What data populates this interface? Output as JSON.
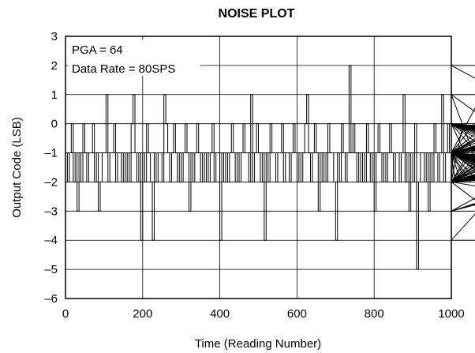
{
  "chart_data": {
    "type": "line",
    "title": "NOISE PLOT",
    "xlabel": "Time (Reading Number)",
    "ylabel": "Output Code (LSB)",
    "xlim": [
      0,
      1000
    ],
    "ylim": [
      -6,
      3
    ],
    "xticks": [
      0,
      200,
      400,
      600,
      800,
      1000
    ],
    "yticks": [
      3,
      2,
      1,
      0,
      -1,
      -2,
      -3,
      -4,
      -5,
      -6
    ],
    "xtick_labels": [
      "0",
      "200",
      "400",
      "600",
      "800",
      "1000"
    ],
    "ytick_labels": [
      "3",
      "2",
      "1",
      "0",
      "–1",
      "–2",
      "–3",
      "–4",
      "–5",
      "–6"
    ],
    "grid": true,
    "legend": "none",
    "annotations": [
      "PGA = 64",
      "Data Rate = 80SPS"
    ],
    "series": [
      {
        "x_start": 0,
        "x_step": 5,
        "values": [
          -1,
          -2,
          -1,
          0,
          -2,
          -1,
          -3,
          -1,
          -2,
          0,
          -1,
          -2,
          -1,
          -1,
          0,
          -2,
          -1,
          -3,
          -2,
          -1,
          -1,
          1,
          -2,
          -1,
          -1,
          0,
          -2,
          -1,
          -1,
          -2,
          -1,
          -2,
          -1,
          -2,
          0,
          1,
          -1,
          -2,
          -1,
          -4,
          -1,
          -2,
          0,
          -1,
          -2,
          -4,
          -1,
          -2,
          -1,
          -1,
          -2,
          1,
          0,
          -1,
          -2,
          -1,
          0,
          -1,
          -2,
          -1,
          -2,
          -1,
          0,
          -1,
          -3,
          -1,
          -2,
          -1,
          0,
          -1,
          -2,
          -1,
          -2,
          -1,
          -2,
          -1,
          0,
          -2,
          -1,
          -1,
          -4,
          -1,
          -2,
          -1,
          -2,
          -1,
          0,
          -1,
          -2,
          -1,
          -2,
          -1,
          0,
          -1,
          -1,
          -2,
          1,
          -2,
          -1,
          0,
          -1,
          -2,
          -1,
          -4,
          -1,
          -2,
          0,
          -1,
          -1,
          -2,
          -1,
          -1,
          0,
          -2,
          -1,
          -1,
          -2,
          -1,
          0,
          -1,
          -2,
          -1,
          -2,
          -1,
          0,
          1,
          -1,
          -2,
          -1,
          0,
          -1,
          -3,
          -1,
          -2,
          -1,
          -2,
          0,
          -1,
          -1,
          -2,
          -4,
          -1,
          -2,
          0,
          -1,
          -2,
          -1,
          2,
          -1,
          0,
          -1,
          -2,
          -1,
          -2,
          -1,
          -2,
          0,
          -1,
          -2,
          -1,
          -3,
          -1,
          0,
          -1,
          -2,
          -1,
          -2,
          -1,
          0,
          -1,
          -2,
          -1,
          -1,
          -2,
          -1,
          1,
          -2,
          -1,
          -3,
          -1,
          -2,
          0,
          -5,
          -2,
          -1,
          -1,
          -2,
          -1,
          -3,
          -1,
          -2,
          0,
          -1,
          -2,
          -1,
          1,
          -2,
          -1,
          0,
          -1,
          -2,
          -1,
          -2,
          -1,
          -1,
          -2,
          0,
          -1,
          -2,
          -1,
          -2,
          -1,
          0,
          -1,
          -2,
          -1,
          1,
          -2,
          -1,
          0,
          -1,
          -2,
          -1,
          -2,
          -1,
          0,
          -1,
          -2,
          -1,
          -2,
          -1,
          0,
          -1,
          -2,
          -1,
          -2,
          -1,
          0,
          -1,
          -2,
          -4,
          -1,
          -2,
          0,
          -1,
          -2,
          -1,
          -1,
          -2,
          -1,
          0,
          -1,
          -2,
          -1,
          -3,
          -1,
          0,
          -1,
          -2,
          -1,
          -2,
          -1,
          1,
          -2,
          -1,
          0,
          -1,
          -2,
          -1,
          -2,
          -1,
          0,
          -1,
          -2,
          -1,
          -2,
          -1,
          0,
          -1,
          -2,
          -1,
          -2,
          -1,
          2,
          -1,
          -2,
          -1,
          0,
          -1,
          -2,
          -1,
          -2,
          -3,
          -1,
          0,
          -1,
          -2,
          -1,
          -2,
          0,
          -1,
          -3,
          -1,
          -2,
          -1,
          0,
          -1,
          -2,
          -1,
          -2,
          -1,
          0,
          -1,
          -2,
          -1,
          -3,
          -1,
          0,
          -1,
          -2,
          -1,
          -2,
          -1,
          0,
          -1,
          -2,
          -1,
          -2,
          -1,
          0,
          -1,
          -2,
          -1,
          -2,
          -1,
          0,
          -1,
          -2,
          -1,
          -2,
          -1,
          0,
          -1,
          -2,
          -1,
          -2,
          -1,
          0,
          -1,
          -2,
          -1,
          -2,
          -1,
          0,
          -1,
          -2,
          -1,
          -2,
          -1,
          0,
          -1,
          -2,
          -1,
          -2,
          -1,
          0,
          -1,
          -2,
          -1,
          -2,
          -1,
          0,
          -1,
          -2,
          -1,
          -2,
          -1,
          0,
          -1,
          -2,
          -1,
          -2,
          -1,
          0,
          -1,
          -2,
          -1,
          -2,
          -1,
          0,
          -1,
          -2,
          -1,
          -2,
          -1,
          0,
          -1,
          -2,
          -1,
          -2,
          -1,
          0,
          -1,
          -2,
          -1,
          -2,
          -1,
          0,
          -1,
          -2,
          -1,
          -2,
          -1,
          0,
          -1,
          -2,
          -1,
          -2,
          -1
        ]
      }
    ]
  }
}
